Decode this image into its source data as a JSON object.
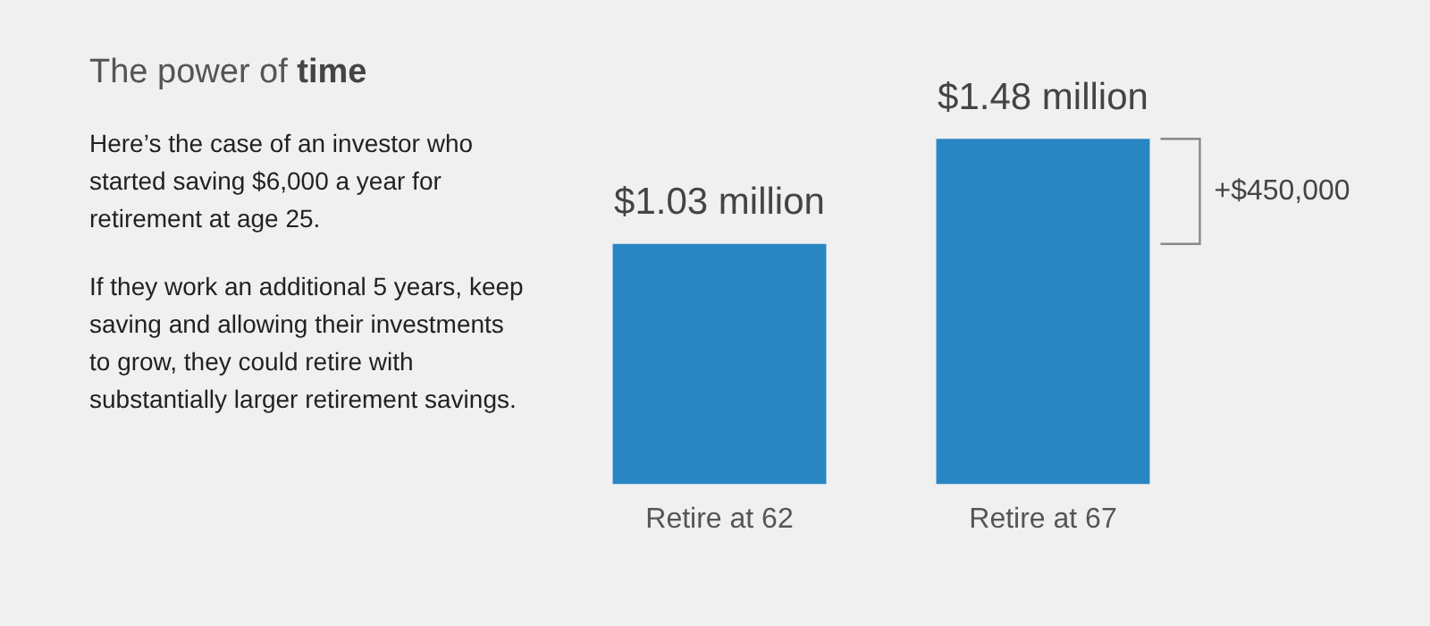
{
  "chart_data": {
    "type": "bar",
    "title": "The power of time",
    "categories": [
      "Retire at 62",
      "Retire at 67"
    ],
    "values": [
      1.03,
      1.48
    ],
    "value_labels": [
      "$1.03 million",
      "$1.48 million"
    ],
    "color": "#2a86c3",
    "grid": false,
    "legend": false,
    "tick_labels": "x",
    "annotations": [
      "Here’s the case of an investor who started saving $6,000 a year for retirement at age 25.",
      "If they work an additional 5 years, keep saving and allowing their investments to grow, they could retire with substantially larger retirement savings.",
      "+$450,000"
    ]
  }
}
